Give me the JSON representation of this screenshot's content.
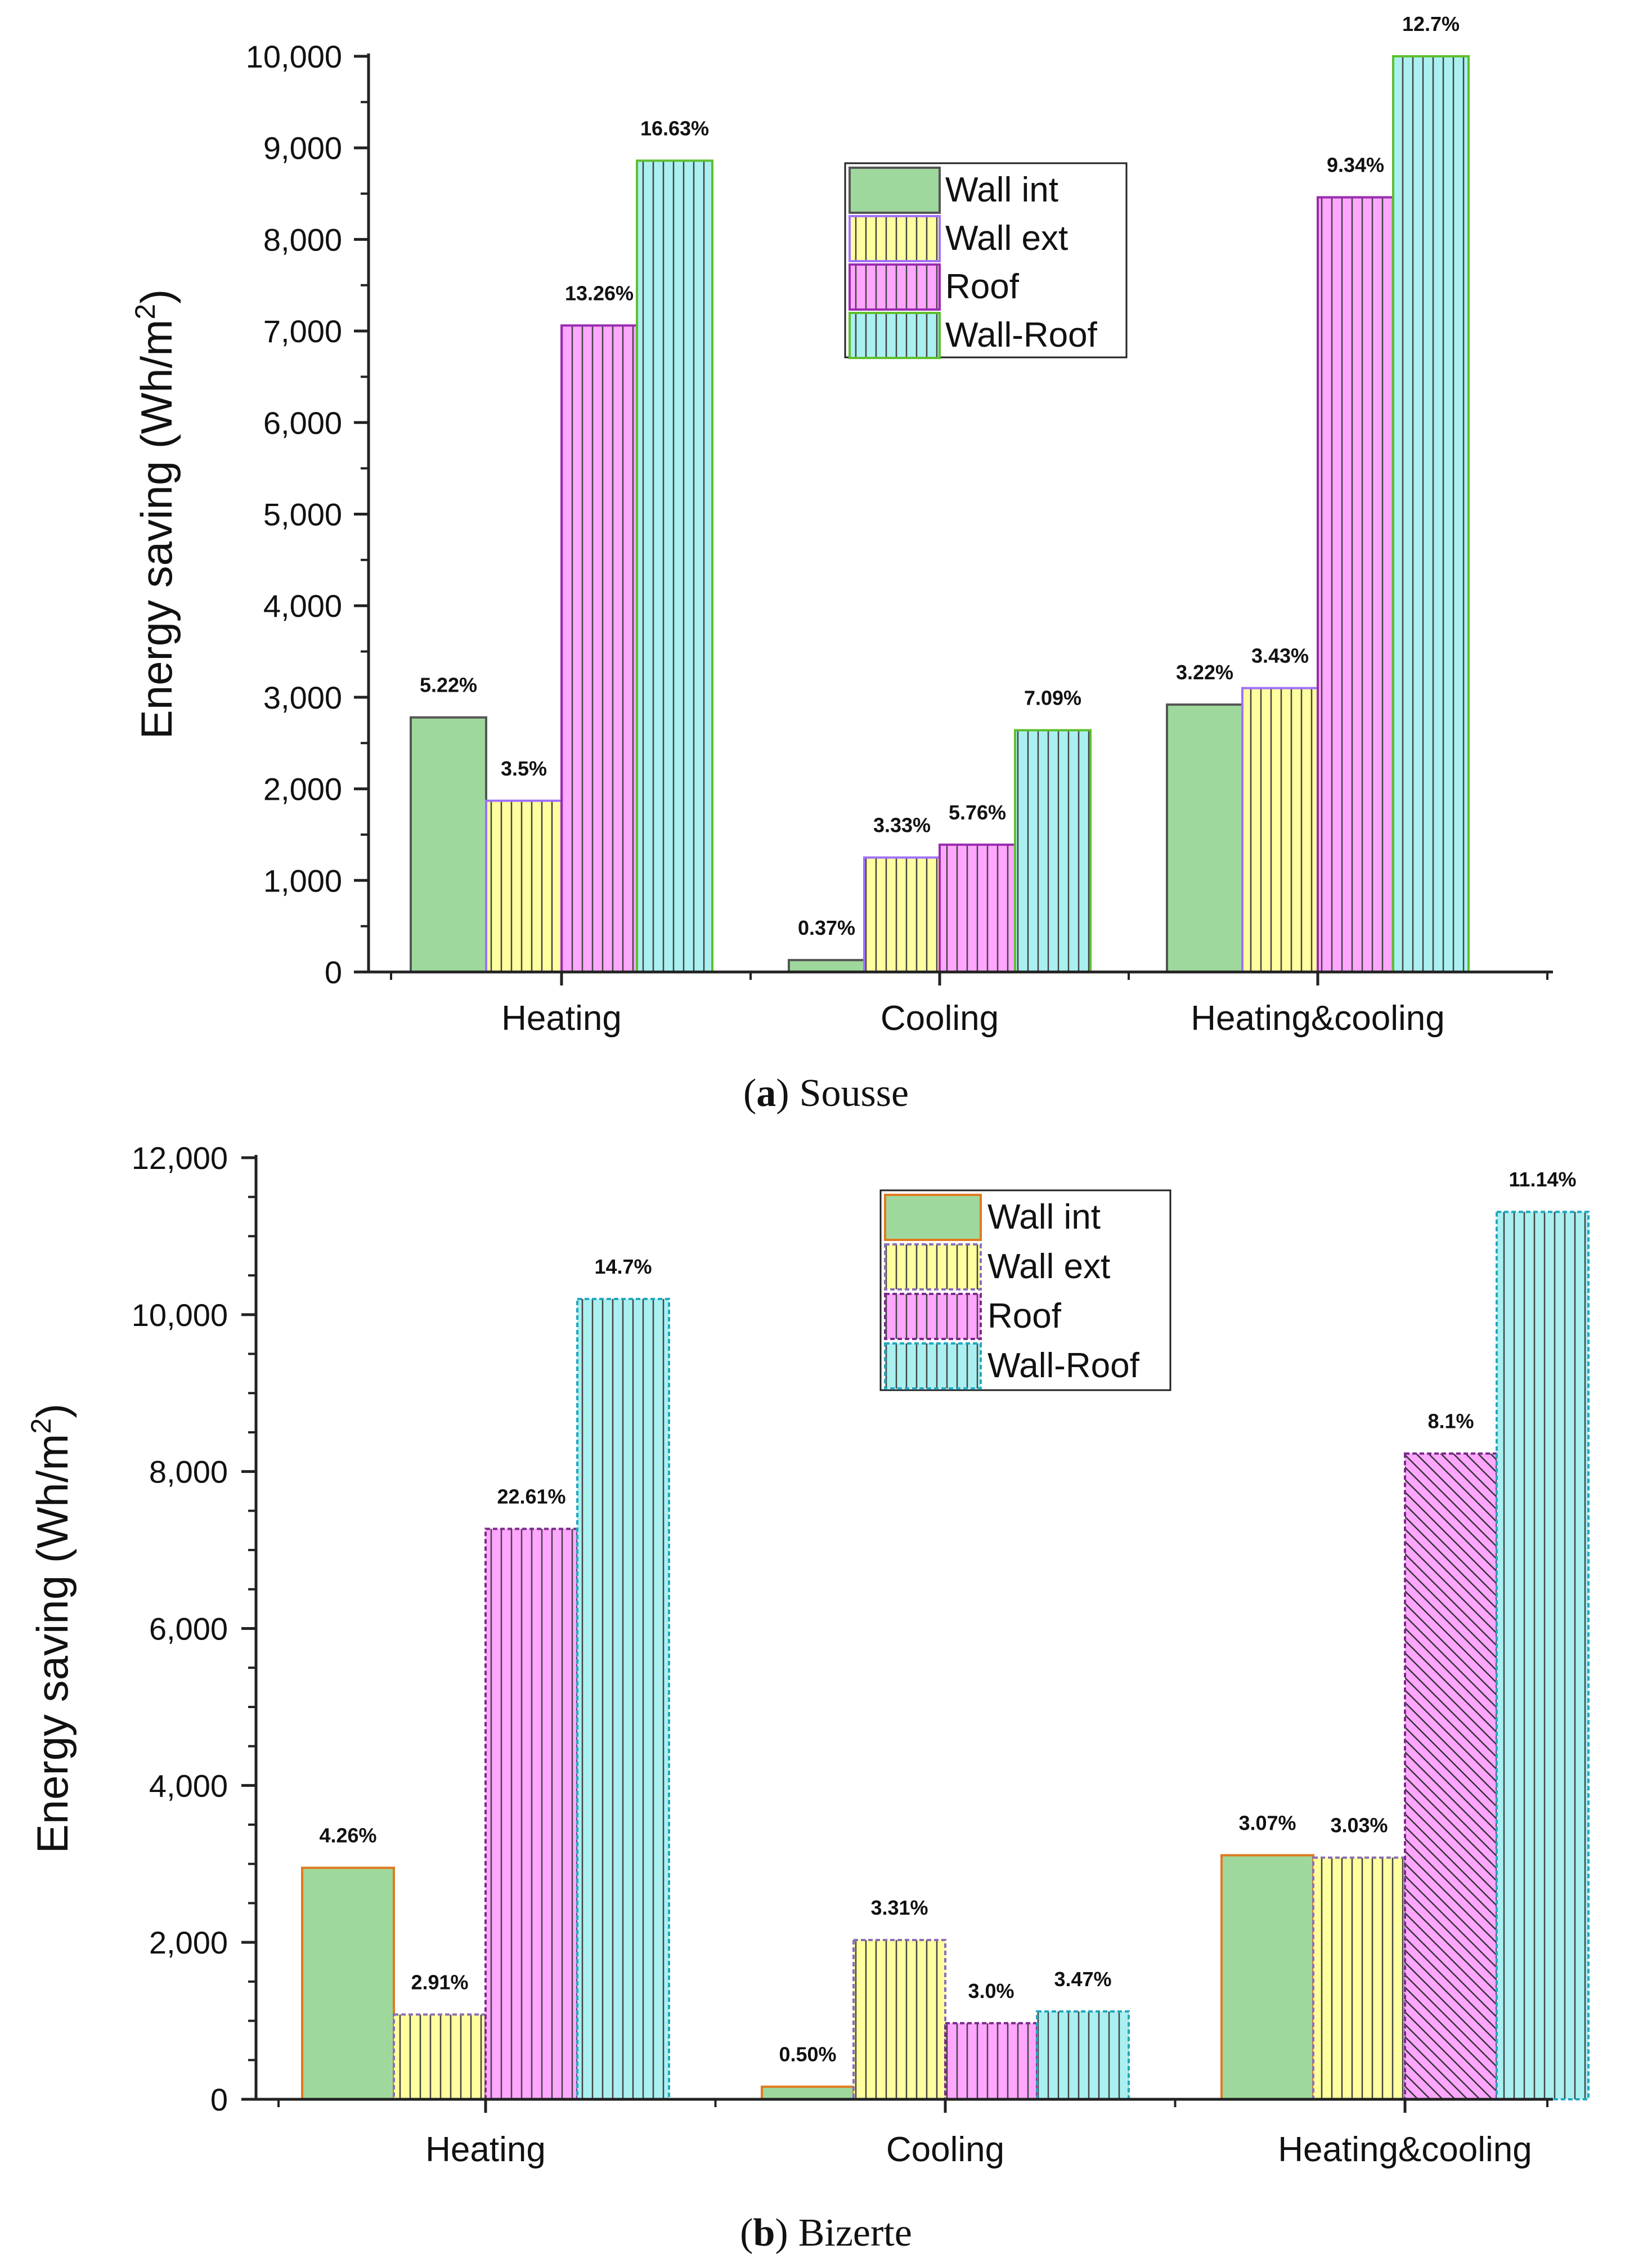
{
  "colors": {
    "wall_int": "#9fd89c",
    "wall_ext": "#ffff9f",
    "roof": "#ffa6ff",
    "wall_roof": "#aaf0f0",
    "axis": "#222222"
  },
  "chart_data": [
    {
      "type": "bar",
      "id": "sousse",
      "caption": {
        "letter": "a",
        "open": "(",
        "close": ")",
        "name": "Sousse"
      },
      "categories": [
        "Heating",
        "Cooling",
        "Heating&cooling"
      ],
      "ylabel": "Energy saving (Wh/m",
      "ylabel_sup": "2",
      "ylabel_close": ")",
      "ylim": [
        0,
        10000
      ],
      "yticks": [
        0,
        1000,
        2000,
        3000,
        4000,
        5000,
        6000,
        7000,
        8000,
        9000,
        10000
      ],
      "ytick_labels": [
        "0",
        "1,000",
        "2,000",
        "3,000",
        "4,000",
        "5,000",
        "6,000",
        "7,000",
        "8,000",
        "9,000",
        "10,000"
      ],
      "legend_position": "top-center",
      "series": [
        {
          "name": "Wall int",
          "key": "wall_int",
          "values": [
            2780,
            130,
            2920
          ],
          "labels": [
            "5.22%",
            "0.37%",
            "3.22%"
          ]
        },
        {
          "name": "Wall ext",
          "key": "wall_ext",
          "values": [
            1870,
            1250,
            3100
          ],
          "labels": [
            "3.5%",
            "3.33%",
            "3.43%"
          ]
        },
        {
          "name": "Roof",
          "key": "roof",
          "values": [
            7060,
            1390,
            8460
          ],
          "labels": [
            "13.26%",
            "5.76%",
            "9.34%"
          ]
        },
        {
          "name": "Wall-Roof",
          "key": "wall_roof",
          "values": [
            8860,
            2640,
            10000
          ],
          "labels": [
            "16.63%",
            "7.09%",
            "12.7%"
          ]
        }
      ]
    },
    {
      "type": "bar",
      "id": "bizerte",
      "caption": {
        "letter": "b",
        "open": "(",
        "close": ")",
        "name": "Bizerte"
      },
      "categories": [
        "Heating",
        "Cooling",
        "Heating&cooling"
      ],
      "ylabel": "Energy saving (Wh/m",
      "ylabel_sup": "2",
      "ylabel_close": ")",
      "ylim": [
        0,
        12000
      ],
      "yticks": [
        0,
        2000,
        4000,
        6000,
        8000,
        10000,
        12000
      ],
      "ytick_labels": [
        "0",
        "2,000",
        "4,000",
        "6,000",
        "8,000",
        "10,000",
        "12,000"
      ],
      "legend_position": "top-center",
      "series": [
        {
          "name": "Wall int",
          "key": "wall_int",
          "values": [
            2950,
            160,
            3110
          ],
          "labels": [
            "4.26%",
            "0.50%",
            "3.07%"
          ]
        },
        {
          "name": "Wall ext",
          "key": "wall_ext",
          "values": [
            1080,
            2030,
            3080
          ],
          "labels": [
            "2.91%",
            "3.31%",
            "3.03%"
          ]
        },
        {
          "name": "Roof",
          "key": "roof",
          "values": [
            7270,
            970,
            8230
          ],
          "labels": [
            "22.61%",
            "3.0%",
            "8.1%"
          ]
        },
        {
          "name": "Wall-Roof",
          "key": "wall_roof",
          "values": [
            10200,
            1120,
            11310
          ],
          "labels": [
            "14.7%",
            "3.47%",
            "11.14%"
          ]
        }
      ]
    }
  ]
}
